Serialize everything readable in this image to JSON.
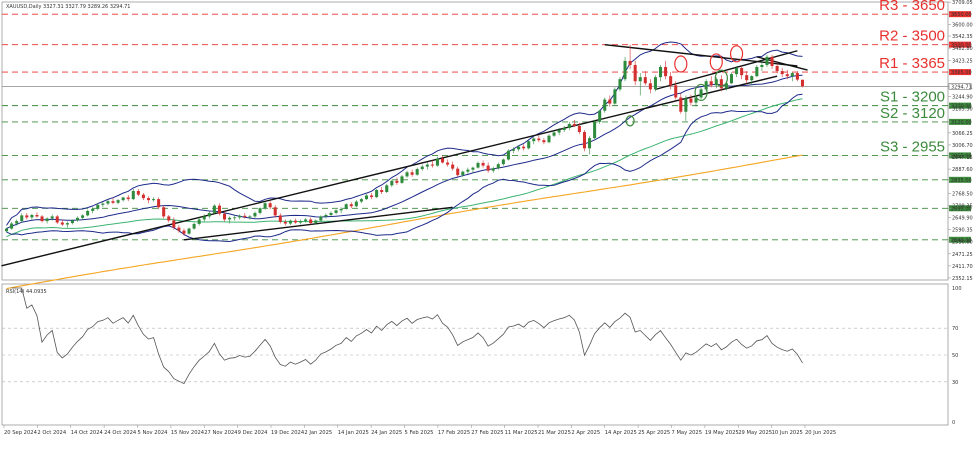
{
  "header": {
    "symbol_ohlc": "XAUUSD,Daily  3327.31 3327.79 3289.26 3294.71"
  },
  "rsi": {
    "title": "RSI(14) 44.0935",
    "ticks": [
      "100",
      "70",
      "50",
      "30",
      "0"
    ]
  },
  "chart_data": {
    "type": "candlestick",
    "instrument": "XAUUSD",
    "timeframe": "Daily",
    "last_ohlc": {
      "open": 3327.31,
      "high": 3327.79,
      "low": 3289.26,
      "close": 3294.71
    },
    "last_price": "3294.71",
    "ylim": [
      2352,
      3700
    ],
    "y_ticks": [
      "3709.05",
      "3650.00",
      "3600.00",
      "3542.35",
      "3500.00",
      "3482.80",
      "3423.25",
      "3365.00",
      "3294.71",
      "3244.90",
      "3200.00",
      "3185.30",
      "3120.00",
      "3066.25",
      "3006.70",
      "2955.00",
      "2947.15",
      "2887.60",
      "2835.00",
      "2768.50",
      "2709.35",
      "2695.00",
      "2649.90",
      "2590.35",
      "2540.00",
      "2530.80",
      "2471.25",
      "2411.70",
      "2352.15"
    ],
    "x_ticks": [
      "20 Sep 2024",
      "2 Oct 2024",
      "14 Oct 2024",
      "24 Oct 2024",
      "5 Nov 2024",
      "15 Nov 2024",
      "27 Nov 2024",
      "9 Dec 2024",
      "19 Dec 2024",
      "2 Jan 2025",
      "14 Jan 2025",
      "24 Jan 2025",
      "5 Feb 2025",
      "17 Feb 2025",
      "27 Feb 2025",
      "11 Mar 2025",
      "21 Mar 2025",
      "2 Apr 2025",
      "14 Apr 2025",
      "25 Apr 2025",
      "7 May 2025",
      "19 May 2025",
      "29 May 2025",
      "10 Jun 2025",
      "20 Jun 2025"
    ],
    "levels": [
      {
        "label": "R3 - 3650",
        "price": 3650,
        "kind": "resistance",
        "color": "#e8312f"
      },
      {
        "label": "R2 - 3500",
        "price": 3500,
        "kind": "resistance",
        "color": "#e8312f"
      },
      {
        "label": "R1 - 3365",
        "price": 3365,
        "kind": "resistance",
        "color": "#e8312f"
      },
      {
        "label": "S1 - 3200",
        "price": 3200,
        "kind": "support",
        "color": "#3c8a3c"
      },
      {
        "label": "S2 - 3120",
        "price": 3120,
        "kind": "support",
        "color": "#3c8a3c"
      },
      {
        "label": "S3 - 2955",
        "price": 2955,
        "kind": "support",
        "color": "#3c8a3c"
      },
      {
        "label": "",
        "price": 2835,
        "kind": "support",
        "color": "#3c8a3c"
      },
      {
        "label": "",
        "price": 2695,
        "kind": "support",
        "color": "#3c8a3c"
      },
      {
        "label": "",
        "price": 2540,
        "kind": "support",
        "color": "#3c8a3c"
      }
    ],
    "candles": [
      [
        2582,
        2600,
        2575,
        2595
      ],
      [
        2595,
        2628,
        2590,
        2620
      ],
      [
        2620,
        2640,
        2610,
        2632
      ],
      [
        2632,
        2670,
        2625,
        2660
      ],
      [
        2660,
        2672,
        2640,
        2650
      ],
      [
        2650,
        2668,
        2640,
        2662
      ],
      [
        2662,
        2675,
        2648,
        2655
      ],
      [
        2655,
        2662,
        2625,
        2632
      ],
      [
        2632,
        2650,
        2620,
        2645
      ],
      [
        2645,
        2665,
        2635,
        2655
      ],
      [
        2655,
        2662,
        2618,
        2625
      ],
      [
        2625,
        2640,
        2608,
        2615
      ],
      [
        2615,
        2630,
        2600,
        2622
      ],
      [
        2622,
        2640,
        2615,
        2635
      ],
      [
        2635,
        2655,
        2628,
        2648
      ],
      [
        2648,
        2665,
        2640,
        2660
      ],
      [
        2660,
        2688,
        2655,
        2682
      ],
      [
        2682,
        2700,
        2670,
        2692
      ],
      [
        2692,
        2720,
        2685,
        2712
      ],
      [
        2712,
        2725,
        2700,
        2718
      ],
      [
        2718,
        2738,
        2710,
        2730
      ],
      [
        2730,
        2745,
        2715,
        2722
      ],
      [
        2722,
        2740,
        2715,
        2735
      ],
      [
        2735,
        2752,
        2728,
        2748
      ],
      [
        2748,
        2760,
        2730,
        2740
      ],
      [
        2740,
        2790,
        2735,
        2780
      ],
      [
        2780,
        2790,
        2755,
        2762
      ],
      [
        2762,
        2770,
        2735,
        2745
      ],
      [
        2745,
        2755,
        2720,
        2735
      ],
      [
        2735,
        2750,
        2728,
        2740
      ],
      [
        2740,
        2748,
        2690,
        2700
      ],
      [
        2700,
        2710,
        2645,
        2655
      ],
      [
        2655,
        2662,
        2625,
        2635
      ],
      [
        2635,
        2650,
        2590,
        2600
      ],
      [
        2600,
        2612,
        2575,
        2585
      ],
      [
        2585,
        2595,
        2560,
        2570
      ],
      [
        2570,
        2600,
        2565,
        2595
      ],
      [
        2595,
        2625,
        2590,
        2618
      ],
      [
        2618,
        2650,
        2610,
        2640
      ],
      [
        2640,
        2665,
        2630,
        2655
      ],
      [
        2655,
        2680,
        2645,
        2672
      ],
      [
        2672,
        2715,
        2665,
        2708
      ],
      [
        2708,
        2720,
        2660,
        2668
      ],
      [
        2668,
        2680,
        2630,
        2640
      ],
      [
        2640,
        2655,
        2620,
        2648
      ],
      [
        2648,
        2660,
        2635,
        2650
      ],
      [
        2650,
        2665,
        2640,
        2658
      ],
      [
        2658,
        2672,
        2645,
        2652
      ],
      [
        2652,
        2662,
        2640,
        2655
      ],
      [
        2655,
        2680,
        2648,
        2672
      ],
      [
        2672,
        2700,
        2665,
        2695
      ],
      [
        2695,
        2725,
        2688,
        2720
      ],
      [
        2720,
        2730,
        2690,
        2700
      ],
      [
        2700,
        2710,
        2650,
        2660
      ],
      [
        2660,
        2670,
        2620,
        2628
      ],
      [
        2628,
        2640,
        2610,
        2620
      ],
      [
        2620,
        2640,
        2612,
        2634
      ],
      [
        2634,
        2645,
        2618,
        2625
      ],
      [
        2625,
        2640,
        2615,
        2632
      ],
      [
        2632,
        2648,
        2625,
        2640
      ],
      [
        2640,
        2650,
        2615,
        2622
      ],
      [
        2622,
        2640,
        2615,
        2635
      ],
      [
        2635,
        2660,
        2630,
        2655
      ],
      [
        2655,
        2670,
        2645,
        2662
      ],
      [
        2662,
        2680,
        2655,
        2672
      ],
      [
        2672,
        2690,
        2665,
        2685
      ],
      [
        2685,
        2700,
        2670,
        2692
      ],
      [
        2692,
        2720,
        2688,
        2715
      ],
      [
        2715,
        2725,
        2695,
        2705
      ],
      [
        2705,
        2735,
        2700,
        2728
      ],
      [
        2728,
        2745,
        2720,
        2740
      ],
      [
        2740,
        2765,
        2735,
        2758
      ],
      [
        2758,
        2770,
        2740,
        2750
      ],
      [
        2750,
        2790,
        2745,
        2785
      ],
      [
        2785,
        2800,
        2765,
        2775
      ],
      [
        2775,
        2815,
        2770,
        2808
      ],
      [
        2808,
        2835,
        2800,
        2830
      ],
      [
        2830,
        2845,
        2810,
        2820
      ],
      [
        2820,
        2860,
        2815,
        2852
      ],
      [
        2852,
        2880,
        2845,
        2872
      ],
      [
        2872,
        2885,
        2850,
        2860
      ],
      [
        2860,
        2895,
        2855,
        2888
      ],
      [
        2888,
        2910,
        2880,
        2900
      ],
      [
        2900,
        2920,
        2885,
        2910
      ],
      [
        2910,
        2930,
        2895,
        2905
      ],
      [
        2905,
        2950,
        2900,
        2940
      ],
      [
        2940,
        2955,
        2915,
        2920
      ],
      [
        2920,
        2935,
        2900,
        2910
      ],
      [
        2910,
        2925,
        2880,
        2890
      ],
      [
        2890,
        2900,
        2850,
        2858
      ],
      [
        2858,
        2880,
        2850,
        2875
      ],
      [
        2875,
        2895,
        2865,
        2885
      ],
      [
        2885,
        2900,
        2870,
        2895
      ],
      [
        2895,
        2925,
        2890,
        2918
      ],
      [
        2918,
        2930,
        2895,
        2905
      ],
      [
        2905,
        2920,
        2870,
        2880
      ],
      [
        2880,
        2900,
        2870,
        2892
      ],
      [
        2892,
        2920,
        2885,
        2912
      ],
      [
        2912,
        2940,
        2905,
        2935
      ],
      [
        2935,
        2985,
        2930,
        2978
      ],
      [
        2978,
        2995,
        2965,
        2985
      ],
      [
        2985,
        3005,
        2975,
        2998
      ],
      [
        2998,
        3010,
        2980,
        2990
      ],
      [
        2990,
        3030,
        2985,
        3025
      ],
      [
        3025,
        3045,
        3010,
        3038
      ],
      [
        3038,
        3055,
        3020,
        3030
      ],
      [
        3030,
        3040,
        3010,
        3020
      ],
      [
        3020,
        3060,
        3015,
        3052
      ],
      [
        3052,
        3075,
        3045,
        3068
      ],
      [
        3068,
        3090,
        3055,
        3080
      ],
      [
        3080,
        3100,
        3070,
        3090
      ],
      [
        3090,
        3120,
        3080,
        3110
      ],
      [
        3110,
        3130,
        3095,
        3100
      ],
      [
        3100,
        3115,
        3060,
        3070
      ],
      [
        3070,
        3080,
        2975,
        2990
      ],
      [
        2990,
        3050,
        2960,
        3040
      ],
      [
        3040,
        3130,
        3035,
        3120
      ],
      [
        3120,
        3180,
        3110,
        3175
      ],
      [
        3175,
        3240,
        3165,
        3230
      ],
      [
        3230,
        3250,
        3195,
        3210
      ],
      [
        3210,
        3290,
        3205,
        3280
      ],
      [
        3280,
        3340,
        3270,
        3330
      ],
      [
        3330,
        3440,
        3320,
        3420
      ],
      [
        3420,
        3500,
        3380,
        3400
      ],
      [
        3400,
        3420,
        3300,
        3320
      ],
      [
        3320,
        3360,
        3250,
        3340
      ],
      [
        3340,
        3370,
        3300,
        3310
      ],
      [
        3310,
        3330,
        3260,
        3280
      ],
      [
        3280,
        3350,
        3270,
        3340
      ],
      [
        3340,
        3400,
        3320,
        3390
      ],
      [
        3390,
        3420,
        3330,
        3345
      ],
      [
        3345,
        3365,
        3280,
        3300
      ],
      [
        3300,
        3320,
        3230,
        3240
      ],
      [
        3240,
        3260,
        3160,
        3170
      ],
      [
        3170,
        3250,
        3125,
        3235
      ],
      [
        3235,
        3255,
        3200,
        3215
      ],
      [
        3215,
        3250,
        3195,
        3240
      ],
      [
        3240,
        3290,
        3230,
        3280
      ],
      [
        3280,
        3330,
        3270,
        3320
      ],
      [
        3320,
        3345,
        3290,
        3300
      ],
      [
        3300,
        3340,
        3285,
        3330
      ],
      [
        3330,
        3350,
        3270,
        3285
      ],
      [
        3285,
        3320,
        3275,
        3310
      ],
      [
        3310,
        3365,
        3305,
        3355
      ],
      [
        3355,
        3395,
        3340,
        3385
      ],
      [
        3385,
        3395,
        3330,
        3350
      ],
      [
        3350,
        3370,
        3310,
        3325
      ],
      [
        3325,
        3350,
        3300,
        3345
      ],
      [
        3345,
        3400,
        3340,
        3390
      ],
      [
        3390,
        3420,
        3370,
        3400
      ],
      [
        3400,
        3450,
        3390,
        3440
      ],
      [
        3440,
        3450,
        3380,
        3395
      ],
      [
        3395,
        3410,
        3360,
        3370
      ],
      [
        3370,
        3385,
        3340,
        3355
      ],
      [
        3355,
        3375,
        3330,
        3345
      ],
      [
        3345,
        3365,
        3320,
        3360
      ],
      [
        3360,
        3370,
        3320,
        3328
      ],
      [
        3327.31,
        3327.79,
        3289.26,
        3294.71
      ]
    ],
    "rsi_range": [
      0,
      100
    ]
  },
  "colors": {
    "bull": "#2e8b3e",
    "bear": "#d32f2f",
    "bollinger": "#1e2a8a",
    "ma_mid": "#3cb371",
    "ma_slow": "#f5a623",
    "trendline": "#111111",
    "rsi_line": "#555555",
    "resistance_line": "#e8312f",
    "support_line": "#3c8a3c",
    "last_price_line": "#888888"
  }
}
